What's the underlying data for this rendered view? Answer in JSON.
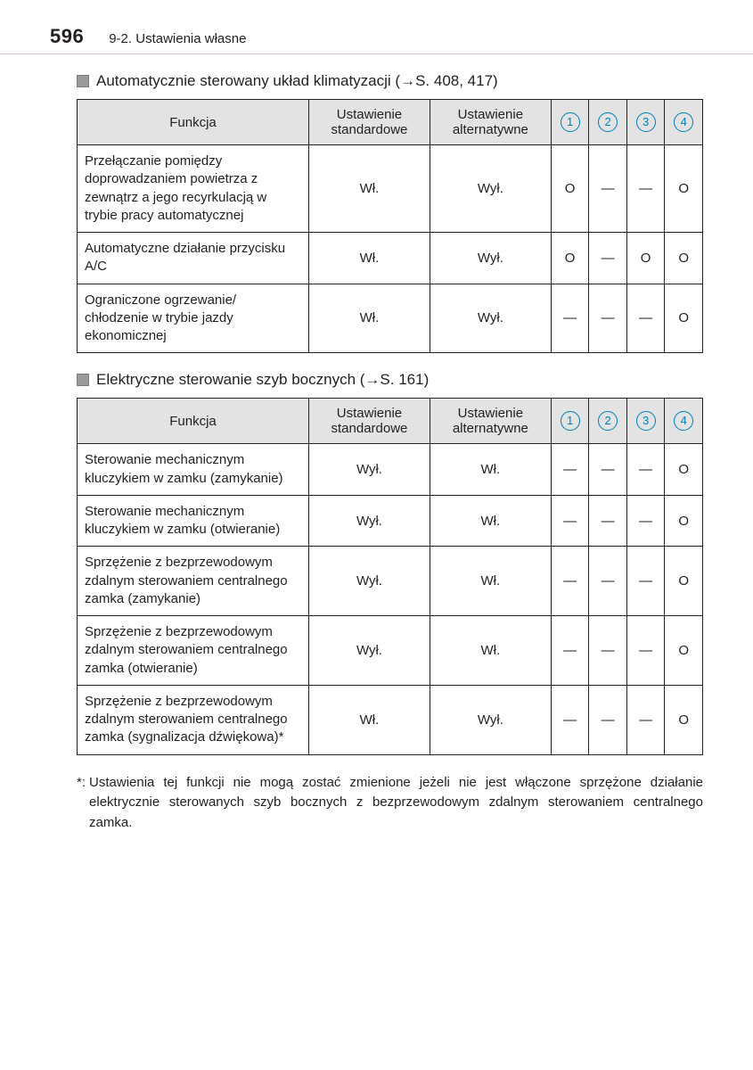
{
  "header": {
    "page_number": "596",
    "chapter": "9-2. Ustawienia własne"
  },
  "colors": {
    "header_rule": "#e9bfd2",
    "table_header_bg": "#e3e3e3",
    "border": "#231f20",
    "circle_number": "#007db8",
    "bullet_fill": "#9a9a9a"
  },
  "table_headers": {
    "func": "Funkcja",
    "std": "Ustawienie standardowe",
    "alt": "Ustawienie alternatywne"
  },
  "icon_labels": [
    "1",
    "2",
    "3",
    "4"
  ],
  "sections": [
    {
      "title_pre": "Automatycznie sterowany układ klimatyzacji (",
      "title_ref": "S. 408, 417",
      "title_post": ")",
      "rows": [
        {
          "func": "Przełączanie pomiędzy doprowadzaniem powietrza z zewnątrz a jego recyrkulacją w trybie pracy automatycznej",
          "std": "Wł.",
          "alt": "Wył.",
          "marks": [
            "O",
            "—",
            "—",
            "O"
          ]
        },
        {
          "func": "Automatyczne działanie przycisku A/C",
          "std": "Wł.",
          "alt": "Wył.",
          "marks": [
            "O",
            "—",
            "O",
            "O"
          ]
        },
        {
          "func": "Ograniczone ogrzewanie/ chłodzenie w trybie jazdy ekonomicznej",
          "std": "Wł.",
          "alt": "Wył.",
          "marks": [
            "—",
            "—",
            "—",
            "O"
          ]
        }
      ]
    },
    {
      "title_pre": "Elektryczne sterowanie szyb bocznych (",
      "title_ref": "S. 161",
      "title_post": ")",
      "rows": [
        {
          "func": "Sterowanie mechanicznym kluczykiem w zamku (zamykanie)",
          "std": "Wył.",
          "alt": "Wł.",
          "marks": [
            "—",
            "—",
            "—",
            "O"
          ]
        },
        {
          "func": "Sterowanie mechanicznym kluczykiem w zamku (otwieranie)",
          "std": "Wył.",
          "alt": "Wł.",
          "marks": [
            "—",
            "—",
            "—",
            "O"
          ]
        },
        {
          "func": "Sprzężenie z bezprzewodowym zdalnym sterowaniem centralnego zamka (zamykanie)",
          "std": "Wył.",
          "alt": "Wł.",
          "marks": [
            "—",
            "—",
            "—",
            "O"
          ]
        },
        {
          "func": "Sprzężenie z bezprzewodowym zdalnym sterowaniem centralnego zamka (otwieranie)",
          "std": "Wył.",
          "alt": "Wł.",
          "marks": [
            "—",
            "—",
            "—",
            "O"
          ]
        },
        {
          "func": "Sprzężenie z bezprzewodowym zdalnym sterowaniem centralnego zamka (sygnalizacja dźwiękowa)*",
          "std": "Wł.",
          "alt": "Wył.",
          "marks": [
            "—",
            "—",
            "—",
            "O"
          ]
        }
      ]
    }
  ],
  "footnote": {
    "mark": "*:",
    "text": "Ustawienia tej funkcji nie mogą zostać zmienione jeżeli nie jest włączone sprzężone działanie elektrycznie sterowanych szyb bocznych z bezprzewodowym zdalnym sterowaniem centralnego zamka."
  }
}
